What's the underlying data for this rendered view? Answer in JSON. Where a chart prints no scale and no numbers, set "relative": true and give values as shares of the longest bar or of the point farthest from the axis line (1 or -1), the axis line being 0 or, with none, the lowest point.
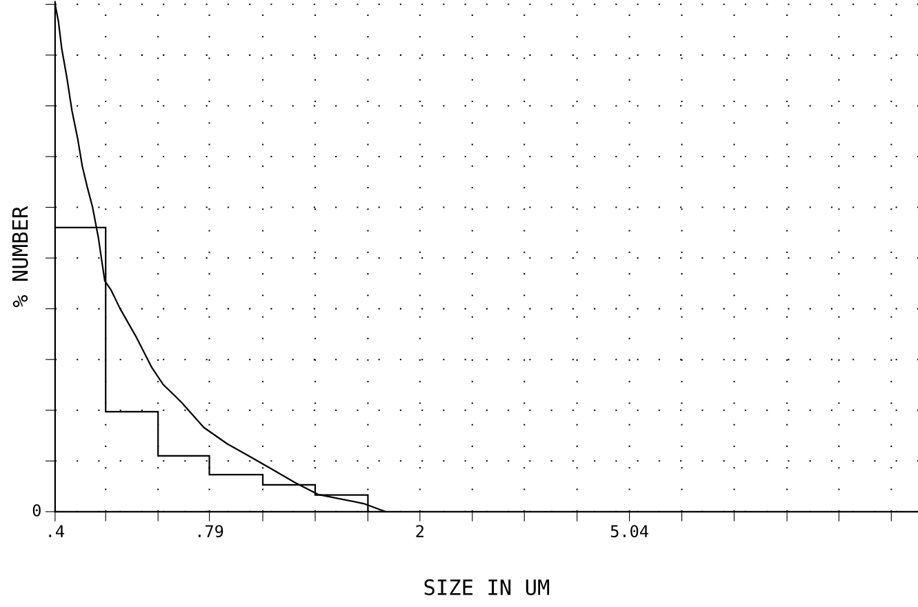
{
  "chart_data": {
    "type": "histogram",
    "xlabel": "SIZE IN UM",
    "ylabel": "% NUMBER",
    "relative": true,
    "log": "x",
    "bins": [
      0.4,
      0.5,
      0.63,
      0.79,
      1,
      1.26,
      1.59
    ],
    "values": [
      0.56,
      0.197,
      0.11,
      0.073,
      0.053,
      0.033
    ],
    "color": "#000000",
    "series": [
      {
        "type": "line",
        "color": "#000000",
        "x": [
          0.4,
          0.406,
          0.412,
          0.421,
          0.431,
          0.442,
          0.451,
          0.461,
          0.472,
          0.484,
          0.498,
          0.512,
          0.533,
          0.571,
          0.613,
          0.644,
          0.698,
          0.771,
          0.854,
          0.944,
          1.04,
          1.155,
          1.276,
          1.56,
          1.72
        ],
        "values": [
          1.0,
          0.966,
          0.912,
          0.858,
          0.79,
          0.735,
          0.681,
          0.64,
          0.6,
          0.541,
          0.455,
          0.437,
          0.4,
          0.346,
          0.284,
          0.251,
          0.216,
          0.166,
          0.134,
          0.109,
          0.084,
          0.057,
          0.034,
          0.016,
          0
        ]
      }
    ],
    "xlim": [
      0.4,
      18
    ],
    "xticks": [
      {
        "value": 0.4,
        "label": ".4"
      },
      {
        "value": 0.5,
        "label": null
      },
      {
        "value": 0.63,
        "label": null
      },
      {
        "value": 0.79,
        "label": ".79"
      },
      {
        "value": 1,
        "label": null
      },
      {
        "value": 1.26,
        "label": null
      },
      {
        "value": 1.59,
        "label": null
      },
      {
        "value": 2,
        "label": "2"
      },
      {
        "value": 2.52,
        "label": null
      },
      {
        "value": 3.17,
        "label": null
      },
      {
        "value": 4,
        "label": null
      },
      {
        "value": 5.04,
        "label": "5.04"
      },
      {
        "value": 6.35,
        "label": null
      },
      {
        "value": 8,
        "label": null
      },
      {
        "value": 10.1,
        "label": null
      },
      {
        "value": 12.7,
        "label": null
      },
      {
        "value": 16,
        "label": null
      }
    ],
    "grid": true,
    "annotations": [
      "0"
    ]
  }
}
